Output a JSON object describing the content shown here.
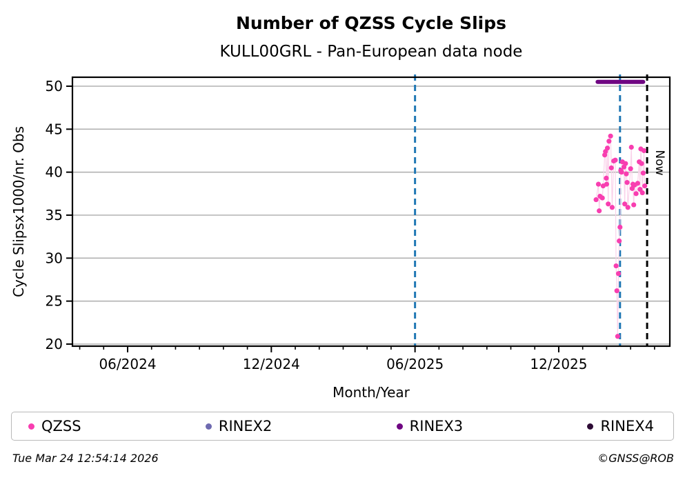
{
  "chart_data": {
    "type": "scatter",
    "title": "Number of QZSS Cycle Slips",
    "subtitle": "KULL00GRL - Pan-European data node",
    "xlabel": "Month/Year",
    "ylabel": "Cycle Slipsx1000/nr. Obs",
    "ylim": [
      19.8,
      51.0
    ],
    "xlim": [
      "2024-03-22",
      "2026-04-20"
    ],
    "grid": "horizontal-only",
    "grid_color": "#b2b2b2",
    "yticks": [
      20,
      25,
      30,
      35,
      40,
      45,
      50
    ],
    "xticks": [
      {
        "date": "2024-06-01",
        "label": "06/2024"
      },
      {
        "date": "2024-12-01",
        "label": "12/2024"
      },
      {
        "date": "2025-06-01",
        "label": "06/2025"
      },
      {
        "date": "2025-12-01",
        "label": "12/2025"
      }
    ],
    "minor_xticks": "monthly",
    "vlines": [
      {
        "date": "2025-06-01",
        "color": "#1f77b4",
        "style": "dashed",
        "label": ""
      },
      {
        "date": "2026-02-18",
        "color": "#1f77b4",
        "style": "dashed",
        "label": ""
      },
      {
        "date": "2026-03-22",
        "color": "#000000",
        "style": "dashed",
        "label": "Now"
      }
    ],
    "series": [
      {
        "name": "QZSS",
        "color": "#f83eb0",
        "line_color": "#fad2ea",
        "marker": "circle",
        "points": [
          [
            "2026-01-18",
            36.8
          ],
          [
            "2026-01-21",
            38.6
          ],
          [
            "2026-01-22",
            35.5
          ],
          [
            "2026-01-23",
            37.2
          ],
          [
            "2026-01-26",
            37.0
          ],
          [
            "2026-01-27",
            38.4
          ],
          [
            "2026-01-29",
            42.0
          ],
          [
            "2026-01-30",
            42.4
          ],
          [
            "2026-01-31",
            39.3
          ],
          [
            "2026-02-01",
            38.6
          ],
          [
            "2026-02-02",
            42.8
          ],
          [
            "2026-02-03",
            36.3
          ],
          [
            "2026-02-04",
            43.6
          ],
          [
            "2026-02-06",
            44.2
          ],
          [
            "2026-02-07",
            40.5
          ],
          [
            "2026-02-08",
            35.9
          ],
          [
            "2026-02-10",
            41.3
          ],
          [
            "2026-02-12",
            41.4
          ],
          [
            "2026-02-13",
            29.1
          ],
          [
            "2026-02-14",
            26.2
          ],
          [
            "2026-02-15",
            20.9
          ],
          [
            "2026-02-16",
            28.2
          ],
          [
            "2026-02-17",
            32.0
          ],
          [
            "2026-02-18",
            33.6
          ],
          [
            "2026-02-19",
            40.2
          ],
          [
            "2026-02-20",
            40.0
          ],
          [
            "2026-02-21",
            41.2
          ],
          [
            "2026-02-23",
            40.6
          ],
          [
            "2026-02-24",
            36.3
          ],
          [
            "2026-02-25",
            41.0
          ],
          [
            "2026-02-26",
            39.8
          ],
          [
            "2026-02-27",
            38.8
          ],
          [
            "2026-02-28",
            35.9
          ],
          [
            "2026-03-01",
            40.4
          ],
          [
            "2026-03-02",
            42.9
          ],
          [
            "2026-03-03",
            38.1
          ],
          [
            "2026-03-04",
            38.6
          ],
          [
            "2026-03-05",
            36.2
          ],
          [
            "2026-03-06",
            38.5
          ],
          [
            "2026-03-08",
            37.5
          ],
          [
            "2026-03-10",
            38.7
          ],
          [
            "2026-03-12",
            41.2
          ],
          [
            "2026-03-13",
            38.0
          ],
          [
            "2026-03-14",
            42.7
          ],
          [
            "2026-03-15",
            41.0
          ],
          [
            "2026-03-16",
            37.6
          ],
          [
            "2026-03-17",
            39.9
          ],
          [
            "2026-03-18",
            42.5
          ],
          [
            "2026-03-19",
            38.4
          ]
        ]
      },
      {
        "name": "RINEX3",
        "color": "#6f0682",
        "type": "thick-line",
        "value": 50.5,
        "start": "2026-01-20",
        "end": "2026-03-17"
      }
    ]
  },
  "legend": {
    "items": [
      {
        "label": "QZSS",
        "color": "#f83eb0"
      },
      {
        "label": "RINEX2",
        "color": "#6e6ab0"
      },
      {
        "label": "RINEX3",
        "color": "#6f0682"
      },
      {
        "label": "RINEX4",
        "color": "#2d0b35"
      }
    ]
  },
  "footer": {
    "timestamp": "Tue Mar 24 12:54:14 2026",
    "credit": "©GNSS@ROB"
  },
  "annotations": {
    "now_label": "Now"
  }
}
